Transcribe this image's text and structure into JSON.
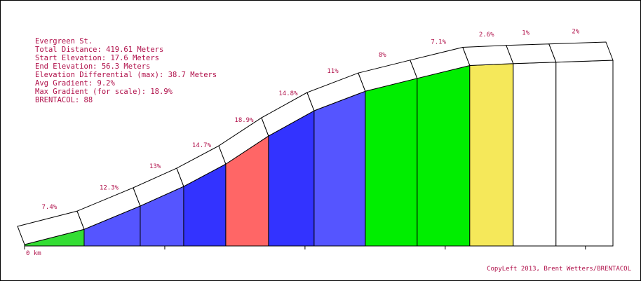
{
  "chart_data": {
    "type": "elevation-profile",
    "info": [
      "Evergreen St.",
      "Total Distance: 419.61 Meters",
      "Start Elevation: 17.6 Meters",
      "End Elevation: 56.3 Meters",
      "Elevation Differential (max): 38.7 Meters",
      "Avg Gradient: 9.2%",
      "Max Gradient (for scale): 18.9%",
      "BRENTACOL: 88"
    ],
    "x": [
      0,
      0.0425,
      0.0825,
      0.1135,
      0.1435,
      0.174,
      0.2065,
      0.243,
      0.28,
      0.3175,
      0.3485,
      0.379,
      0.41961
    ],
    "elevations": [
      17.6,
      20.8,
      25.7,
      29.8,
      34.5,
      40.4,
      45.7,
      49.8,
      52.5,
      55.2,
      55.6,
      55.9,
      56.3
    ],
    "gradients": [
      7.4,
      12.3,
      13,
      14.7,
      18.9,
      14.8,
      11,
      8,
      7.1,
      2.6,
      1,
      2
    ],
    "gradient_labels": [
      "7.4%",
      "12.3%",
      "13%",
      "14.7%",
      "18.9%",
      "14.8%",
      "11%",
      "8%",
      "7.1%",
      "2.6%",
      "1%",
      "2%"
    ],
    "colors": [
      "#33dd33",
      "#5555ff",
      "#5555ff",
      "#3333ff",
      "#ff6666",
      "#3333ff",
      "#5555ff",
      "#00ee00",
      "#00ee00",
      "#f5e85a",
      "#ffffff",
      "#ffffff"
    ],
    "xlim": [
      0,
      0.41961
    ],
    "ylim": [
      17.3,
      56.3
    ],
    "xticks": [
      0,
      0.1,
      0.2,
      0.3,
      0.4
    ],
    "x_start_label": "0 km",
    "footer": "CopyLeft 2013, Brent Wetters/BRENTACOL"
  }
}
